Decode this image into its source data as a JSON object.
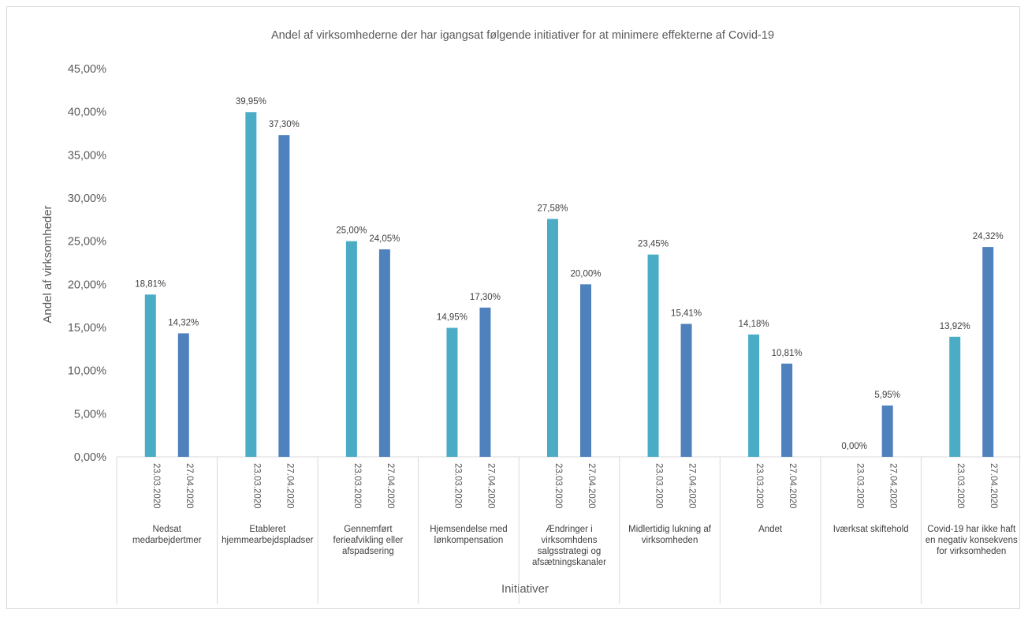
{
  "chart_data": {
    "type": "bar",
    "title": "Andel af virksomhederne der har igangsat følgende initiativer for at minimere effekterne af Covid-19",
    "xlabel": "Initiativer",
    "ylabel": "Andel af virksomheder",
    "ylim": [
      0,
      0.45
    ],
    "y_ticks": [
      "0,00%",
      "5,00%",
      "10,00%",
      "15,00%",
      "20,00%",
      "25,00%",
      "30,00%",
      "35,00%",
      "40,00%",
      "45,00%"
    ],
    "grid": false,
    "legend": "none",
    "categories": [
      [
        "Nedsat",
        "medarbejdertmer"
      ],
      [
        "Etableret",
        "hjemmearbejdspladser"
      ],
      [
        "Gennemført",
        "ferieafvikling eller",
        "afspadsering"
      ],
      [
        "Hjemsendelse med",
        "lønkompensation"
      ],
      [
        "Ændringer i",
        "virksomhdens",
        "salgsstrategi og",
        "afsætningskanaler"
      ],
      [
        "Midlertidig lukning af",
        "virksomheden"
      ],
      [
        "Andet"
      ],
      [
        "Iværksat skiftehold"
      ],
      [
        "Covid-19 har ikke haft",
        "en negativ konsekvens",
        "for virksomheden"
      ]
    ],
    "sub_categories": [
      "23.03.2020",
      "27.04.2020"
    ],
    "series": [
      {
        "color": "#4bacc6",
        "values": [
          0.1881,
          0.3995,
          0.25,
          0.1495,
          0.2758,
          0.2345,
          0.1418,
          0.0,
          0.1392
        ],
        "labels": [
          "18,81%",
          "39,95%",
          "25,00%",
          "14,95%",
          "27,58%",
          "23,45%",
          "14,18%",
          "0,00%",
          "13,92%"
        ]
      },
      {
        "color": "#4f81bd",
        "values": [
          0.1432,
          0.373,
          0.2405,
          0.173,
          0.2,
          0.1541,
          0.1081,
          0.0595,
          0.2432
        ],
        "labels": [
          "14,32%",
          "37,30%",
          "24,05%",
          "17,30%",
          "20,00%",
          "15,41%",
          "10,81%",
          "5,95%",
          "24,32%"
        ]
      }
    ]
  }
}
